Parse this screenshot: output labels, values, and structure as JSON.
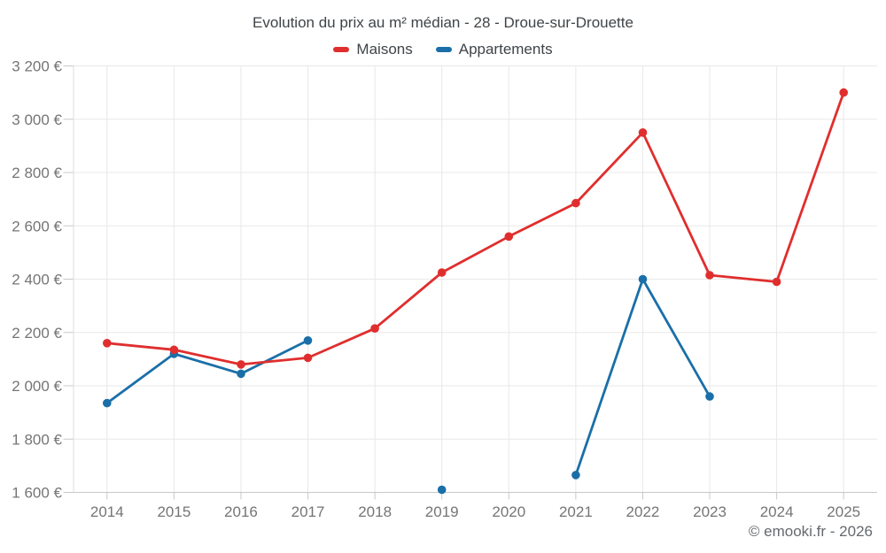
{
  "title": "Evolution du prix au m² médian - 28 - Droue-sur-Drouette",
  "watermark": "© emooki.fr - 2026",
  "colors": {
    "maisons": "#e02e2e",
    "appartements": "#1a6fa8",
    "grid": "#e8e8e8",
    "axis_line": "#c8c8c8",
    "left_axis_line": "#dcdcdc",
    "tick_label": "#757575",
    "title_text": "#3f4448",
    "watermark_text": "#65696d"
  },
  "chart_data": {
    "type": "line",
    "title": "Evolution du prix au m² médian - 28 - Droue-sur-Drouette",
    "categories": [
      "2014",
      "2015",
      "2016",
      "2017",
      "2018",
      "2019",
      "2020",
      "2021",
      "2022",
      "2023",
      "2024",
      "2025"
    ],
    "series": [
      {
        "name": "Maisons",
        "color": "#e02e2e",
        "values": [
          2160,
          2135,
          2080,
          2105,
          2215,
          2425,
          2560,
          2685,
          2950,
          2415,
          2390,
          3100
        ]
      },
      {
        "name": "Appartements",
        "color": "#1a6fa8",
        "values": [
          1935,
          2120,
          2045,
          2170,
          null,
          1610,
          null,
          1665,
          2400,
          1960,
          null,
          null
        ]
      }
    ],
    "ylim": [
      1600,
      3200
    ],
    "y_ticks": [
      1600,
      1800,
      2000,
      2200,
      2400,
      2600,
      2800,
      3000,
      3200
    ],
    "y_tick_labels": [
      "1 600 €",
      "1 800 €",
      "2 000 €",
      "2 200 €",
      "2 400 €",
      "2 600 €",
      "2 800 €",
      "3 000 €",
      "3 200 €"
    ],
    "xlabel": "",
    "ylabel": "",
    "grid": true,
    "legend_position": "top",
    "marker": "circle",
    "currency_suffix": " €"
  }
}
